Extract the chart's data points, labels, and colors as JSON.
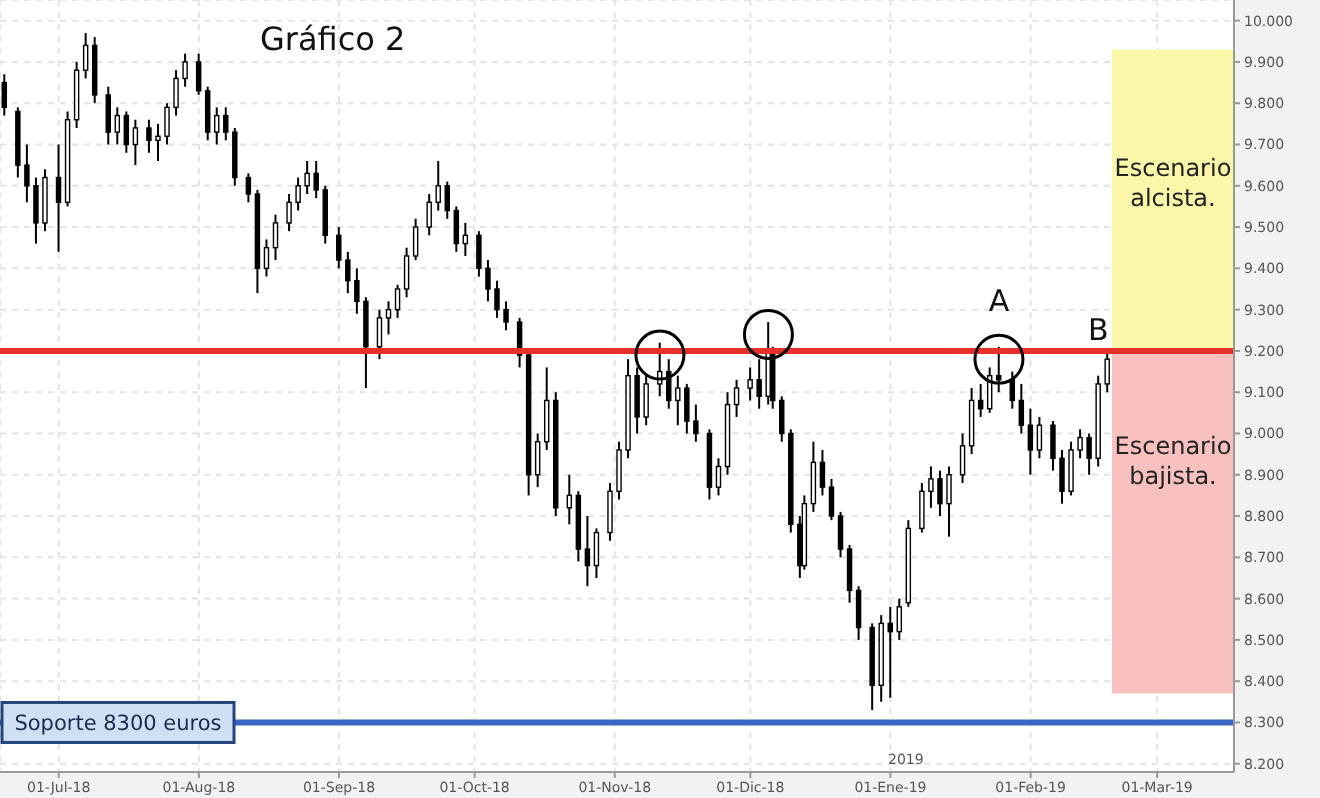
{
  "chart_data": {
    "type": "candlestick",
    "title": "Gráfico 2",
    "x": [
      "2018-06-19",
      "2018-06-22",
      "2018-06-24",
      "2018-06-26",
      "2018-06-28",
      "2018-07-01",
      "2018-07-03",
      "2018-07-05",
      "2018-07-07",
      "2018-07-09",
      "2018-07-12",
      "2018-07-14",
      "2018-07-16",
      "2018-07-18",
      "2018-07-21",
      "2018-07-23",
      "2018-07-25",
      "2018-07-27",
      "2018-07-29",
      "2018-08-01",
      "2018-08-03",
      "2018-08-05",
      "2018-08-07",
      "2018-08-09",
      "2018-08-12",
      "2018-08-14",
      "2018-08-16",
      "2018-08-18",
      "2018-08-21",
      "2018-08-23",
      "2018-08-25",
      "2018-08-27",
      "2018-08-29",
      "2018-09-01",
      "2018-09-03",
      "2018-09-05",
      "2018-09-07",
      "2018-09-10",
      "2018-09-12",
      "2018-09-14",
      "2018-09-16",
      "2018-09-18",
      "2018-09-21",
      "2018-09-23",
      "2018-09-25",
      "2018-09-27",
      "2018-09-29",
      "2018-10-02",
      "2018-10-04",
      "2018-10-06",
      "2018-10-08",
      "2018-10-11",
      "2018-10-13",
      "2018-10-15",
      "2018-10-17",
      "2018-10-19",
      "2018-10-22",
      "2018-10-24",
      "2018-10-26",
      "2018-10-28",
      "2018-10-31",
      "2018-11-02",
      "2018-11-04",
      "2018-11-06",
      "2018-11-08",
      "2018-11-11",
      "2018-11-13",
      "2018-11-15",
      "2018-11-17",
      "2018-11-19",
      "2018-11-22",
      "2018-11-24",
      "2018-11-26",
      "2018-11-28",
      "2018-12-01",
      "2018-12-03",
      "2018-12-05",
      "2018-12-06",
      "2018-12-08",
      "2018-12-10",
      "2018-12-12",
      "2018-12-13",
      "2018-12-15",
      "2018-12-17",
      "2018-12-19",
      "2018-12-21",
      "2018-12-23",
      "2018-12-25",
      "2018-12-28",
      "2018-12-30",
      "2019-01-01",
      "2019-01-03",
      "2019-01-05",
      "2019-01-08",
      "2019-01-10",
      "2019-01-12",
      "2019-01-14",
      "2019-01-17",
      "2019-01-19",
      "2019-01-21",
      "2019-01-23",
      "2019-01-25",
      "2019-01-28",
      "2019-01-30",
      "2019-02-01",
      "2019-02-03",
      "2019-02-06",
      "2019-02-08",
      "2019-02-10",
      "2019-02-12",
      "2019-02-14",
      "2019-02-16",
      "2019-02-18"
    ],
    "ohlc": [
      [
        9850,
        9870,
        9770,
        9790
      ],
      [
        9780,
        9790,
        9620,
        9650
      ],
      [
        9650,
        9700,
        9560,
        9600
      ],
      [
        9600,
        9620,
        9460,
        9510
      ],
      [
        9510,
        9640,
        9490,
        9620
      ],
      [
        9620,
        9700,
        9440,
        9560
      ],
      [
        9560,
        9780,
        9550,
        9760
      ],
      [
        9760,
        9900,
        9740,
        9880
      ],
      [
        9880,
        9970,
        9860,
        9940
      ],
      [
        9940,
        9960,
        9800,
        9820
      ],
      [
        9820,
        9840,
        9700,
        9730
      ],
      [
        9730,
        9790,
        9700,
        9770
      ],
      [
        9770,
        9780,
        9680,
        9700
      ],
      [
        9700,
        9760,
        9650,
        9740
      ],
      [
        9740,
        9760,
        9680,
        9710
      ],
      [
        9710,
        9750,
        9660,
        9720
      ],
      [
        9720,
        9800,
        9700,
        9790
      ],
      [
        9790,
        9880,
        9770,
        9860
      ],
      [
        9860,
        9920,
        9840,
        9900
      ],
      [
        9900,
        9920,
        9820,
        9830
      ],
      [
        9830,
        9840,
        9710,
        9730
      ],
      [
        9730,
        9790,
        9700,
        9770
      ],
      [
        9770,
        9790,
        9710,
        9730
      ],
      [
        9730,
        9740,
        9600,
        9620
      ],
      [
        9620,
        9630,
        9560,
        9580
      ],
      [
        9580,
        9590,
        9340,
        9400
      ],
      [
        9400,
        9470,
        9380,
        9450
      ],
      [
        9450,
        9530,
        9420,
        9510
      ],
      [
        9510,
        9580,
        9490,
        9560
      ],
      [
        9560,
        9620,
        9540,
        9600
      ],
      [
        9600,
        9660,
        9580,
        9630
      ],
      [
        9630,
        9660,
        9570,
        9590
      ],
      [
        9590,
        9600,
        9460,
        9480
      ],
      [
        9480,
        9500,
        9400,
        9420
      ],
      [
        9420,
        9440,
        9340,
        9370
      ],
      [
        9370,
        9400,
        9290,
        9320
      ],
      [
        9320,
        9330,
        9110,
        9210
      ],
      [
        9210,
        9300,
        9180,
        9280
      ],
      [
        9280,
        9320,
        9240,
        9300
      ],
      [
        9300,
        9360,
        9280,
        9350
      ],
      [
        9350,
        9450,
        9330,
        9430
      ],
      [
        9430,
        9520,
        9420,
        9500
      ],
      [
        9500,
        9580,
        9480,
        9560
      ],
      [
        9560,
        9660,
        9540,
        9600
      ],
      [
        9600,
        9610,
        9520,
        9540
      ],
      [
        9540,
        9550,
        9440,
        9460
      ],
      [
        9460,
        9510,
        9430,
        9480
      ],
      [
        9480,
        9490,
        9380,
        9400
      ],
      [
        9400,
        9420,
        9320,
        9350
      ],
      [
        9350,
        9370,
        9280,
        9300
      ],
      [
        9300,
        9320,
        9250,
        9270
      ],
      [
        9270,
        9280,
        9160,
        9190
      ],
      [
        9190,
        9200,
        8850,
        8900
      ],
      [
        8900,
        9000,
        8870,
        8980
      ],
      [
        8980,
        9160,
        8960,
        9080
      ],
      [
        9080,
        9100,
        8800,
        8820
      ],
      [
        8820,
        8900,
        8780,
        8850
      ],
      [
        8850,
        8860,
        8690,
        8720
      ],
      [
        8720,
        8800,
        8630,
        8680
      ],
      [
        8680,
        8770,
        8650,
        8760
      ],
      [
        8760,
        8880,
        8740,
        8860
      ],
      [
        8860,
        8980,
        8840,
        8960
      ],
      [
        8960,
        9180,
        8940,
        9140
      ],
      [
        9140,
        9160,
        9000,
        9040
      ],
      [
        9040,
        9140,
        9020,
        9120
      ],
      [
        9120,
        9220,
        9090,
        9150
      ],
      [
        9150,
        9180,
        9060,
        9080
      ],
      [
        9080,
        9140,
        9020,
        9110
      ],
      [
        9110,
        9120,
        9000,
        9030
      ],
      [
        9030,
        9070,
        8980,
        9000
      ],
      [
        9000,
        9010,
        8840,
        8870
      ],
      [
        8870,
        8940,
        8850,
        8920
      ],
      [
        8920,
        9100,
        8900,
        9070
      ],
      [
        9070,
        9130,
        9040,
        9110
      ],
      [
        9110,
        9160,
        9080,
        9130
      ],
      [
        9130,
        9180,
        9060,
        9090
      ],
      [
        9090,
        9270,
        9070,
        9200
      ],
      [
        9200,
        9210,
        9060,
        9080
      ],
      [
        9080,
        9090,
        8980,
        9000
      ],
      [
        9000,
        9010,
        8760,
        8780
      ],
      [
        8780,
        8800,
        8650,
        8680
      ],
      [
        8680,
        8850,
        8670,
        8830
      ],
      [
        8830,
        8980,
        8810,
        8930
      ],
      [
        8930,
        8960,
        8850,
        8870
      ],
      [
        8870,
        8890,
        8790,
        8800
      ],
      [
        8800,
        8810,
        8700,
        8720
      ],
      [
        8720,
        8730,
        8590,
        8620
      ],
      [
        8620,
        8630,
        8500,
        8530
      ],
      [
        8530,
        8540,
        8330,
        8390
      ],
      [
        8390,
        8560,
        8350,
        8540
      ],
      [
        8540,
        8580,
        8360,
        8520
      ],
      [
        8520,
        8600,
        8500,
        8580
      ],
      [
        8590,
        8790,
        8580,
        8770
      ],
      [
        8770,
        8880,
        8760,
        8860
      ],
      [
        8860,
        8920,
        8820,
        8890
      ],
      [
        8890,
        8910,
        8800,
        8830
      ],
      [
        8830,
        8920,
        8750,
        8900
      ],
      [
        8900,
        9000,
        8880,
        8970
      ],
      [
        8970,
        9110,
        8950,
        9080
      ],
      [
        9080,
        9120,
        9040,
        9060
      ],
      [
        9060,
        9160,
        9050,
        9140
      ],
      [
        9140,
        9210,
        9100,
        9130
      ],
      [
        9130,
        9150,
        9060,
        9080
      ],
      [
        9080,
        9120,
        9000,
        9020
      ],
      [
        9020,
        9060,
        8900,
        8960
      ],
      [
        8960,
        9040,
        8940,
        9020
      ],
      [
        9020,
        9030,
        8910,
        8940
      ],
      [
        8940,
        8960,
        8830,
        8860
      ],
      [
        8860,
        8980,
        8850,
        8960
      ],
      [
        8960,
        9010,
        8940,
        8990
      ],
      [
        8990,
        9000,
        8900,
        8940
      ],
      [
        8940,
        9140,
        8920,
        9120
      ],
      [
        9120,
        9200,
        9100,
        9180
      ]
    ],
    "xlim": [
      "2018-06-18",
      "2019-03-18"
    ],
    "xticks": [
      {
        "value": "2018-07-01",
        "label": "01-Jul-18"
      },
      {
        "value": "2018-08-01",
        "label": "01-Aug-18"
      },
      {
        "value": "2018-09-01",
        "label": "01-Sep-18"
      },
      {
        "value": "2018-10-01",
        "label": "01-Oct-18"
      },
      {
        "value": "2018-11-01",
        "label": "01-Nov-18"
      },
      {
        "value": "2018-12-01",
        "label": "01-Dic-18"
      },
      {
        "value": "2019-01-01",
        "label": "01-Ene-19"
      },
      {
        "value": "2019-02-01",
        "label": "01-Feb-19"
      },
      {
        "value": "2019-03-01",
        "label": "01-Mar-19"
      }
    ],
    "ylim": [
      8180,
      10050
    ],
    "yticks": [
      {
        "value": 8200,
        "label": "8.200"
      },
      {
        "value": 8300,
        "label": "8.300"
      },
      {
        "value": 8400,
        "label": "8.400"
      },
      {
        "value": 8500,
        "label": "8.500"
      },
      {
        "value": 8600,
        "label": "8.600"
      },
      {
        "value": 8700,
        "label": "8.700"
      },
      {
        "value": 8800,
        "label": "8.800"
      },
      {
        "value": 8900,
        "label": "8.900"
      },
      {
        "value": 9000,
        "label": "9.000"
      },
      {
        "value": 9100,
        "label": "9.100"
      },
      {
        "value": 9200,
        "label": "9.200"
      },
      {
        "value": 9300,
        "label": "9.300"
      },
      {
        "value": 9400,
        "label": "9.400"
      },
      {
        "value": 9500,
        "label": "9.500"
      },
      {
        "value": 9600,
        "label": "9.600"
      },
      {
        "value": 9700,
        "label": "9.700"
      },
      {
        "value": 9800,
        "label": "9.800"
      },
      {
        "value": 9900,
        "label": "9.900"
      },
      {
        "value": 10000,
        "label": "10.000"
      }
    ],
    "grid": true,
    "ref_lines": [
      {
        "axis": "y",
        "value": 9200,
        "color": "#e8302a"
      },
      {
        "axis": "y",
        "value": 8300,
        "label": "Soporte 8300 euros",
        "color": "#3a64c4"
      }
    ],
    "bands": [
      {
        "axis": "y",
        "from": 9200,
        "to": 9930,
        "label": "Escenario alcista.",
        "color": "#fbf7a9"
      },
      {
        "axis": "y",
        "from": 8370,
        "to": 9200,
        "label": "Escenario bajista.",
        "color": "#f9c0c0"
      }
    ],
    "annotations": [
      {
        "text": "A",
        "x": "2019-01-25",
        "y": 9210
      },
      {
        "text": "B",
        "x": "2019-02-16",
        "y": 9140
      },
      "2019"
    ]
  }
}
